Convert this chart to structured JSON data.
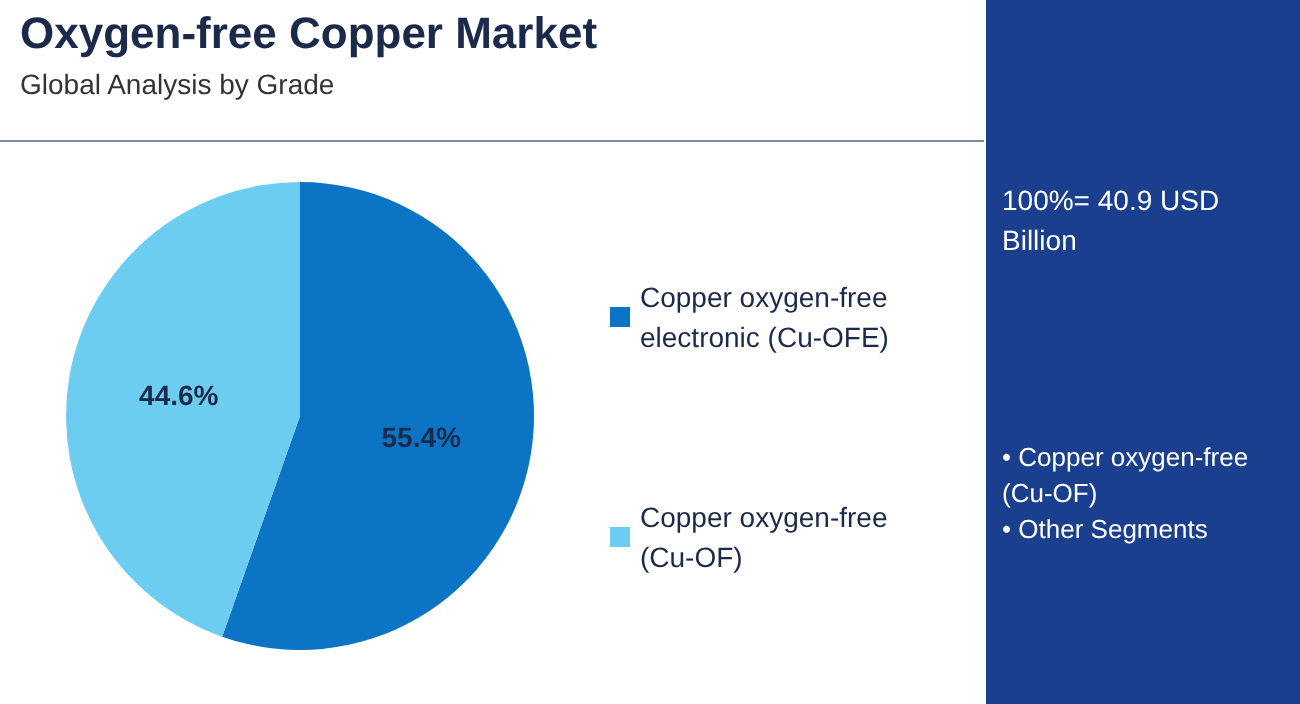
{
  "chart_data": {
    "type": "pie",
    "title": "Oxygen-free Copper Market",
    "subtitle": "Global Analysis by Grade",
    "categories": [
      "Copper oxygen-free electronic (Cu-OFE)",
      "Copper oxygen-free (Cu-OF)"
    ],
    "values": [
      55.4,
      44.6
    ],
    "colors": [
      "#0b74c4",
      "#6ccdf0"
    ],
    "value_labels": [
      "55.4%",
      "44.6%"
    ],
    "legend": "right",
    "annotations": [
      "100%= 40.9 USD Billion",
      "• Copper oxygen-free (Cu-OF)",
      "• Other Segments"
    ]
  }
}
